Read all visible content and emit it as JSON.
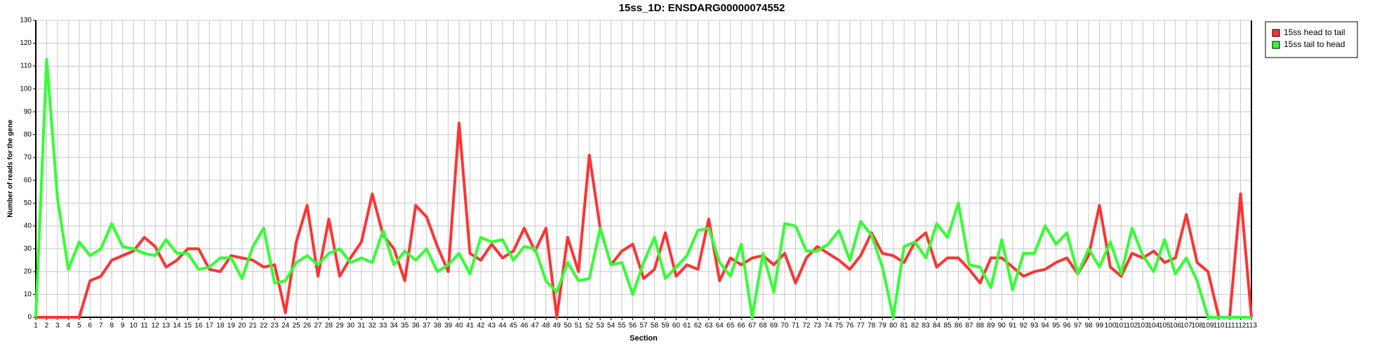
{
  "chart_data": {
    "type": "line",
    "title": "15ss_1D: ENSDARG00000074552",
    "x_label": "Section",
    "y_label": "Number of reads for the gene",
    "x": [
      1,
      2,
      3,
      4,
      5,
      6,
      7,
      8,
      9,
      10,
      11,
      12,
      13,
      14,
      15,
      16,
      17,
      18,
      19,
      20,
      21,
      22,
      23,
      24,
      25,
      26,
      27,
      28,
      29,
      30,
      31,
      32,
      33,
      34,
      35,
      36,
      37,
      38,
      39,
      40,
      41,
      42,
      43,
      44,
      45,
      46,
      47,
      48,
      49,
      50,
      51,
      52,
      53,
      54,
      55,
      56,
      57,
      58,
      59,
      60,
      61,
      62,
      63,
      64,
      65,
      66,
      67,
      68,
      69,
      70,
      71,
      72,
      73,
      74,
      75,
      76,
      77,
      78,
      79,
      80,
      81,
      82,
      83,
      84,
      85,
      86,
      87,
      88,
      89,
      90,
      91,
      92,
      93,
      94,
      95,
      96,
      97,
      98,
      99,
      100,
      101,
      102,
      103,
      104,
      105,
      106,
      107,
      108,
      109,
      110,
      111,
      112,
      113
    ],
    "xlim": [
      1,
      113
    ],
    "xticks": [
      1,
      2,
      3,
      4,
      5,
      6,
      7,
      8,
      9,
      10,
      11,
      12,
      13,
      14,
      15,
      16,
      17,
      18,
      19,
      20,
      21,
      22,
      23,
      24,
      25,
      26,
      27,
      28,
      29,
      30,
      31,
      32,
      33,
      34,
      35,
      36,
      37,
      38,
      39,
      40,
      41,
      42,
      43,
      44,
      45,
      46,
      47,
      48,
      49,
      50,
      51,
      52,
      53,
      54,
      55,
      56,
      57,
      58,
      59,
      60,
      61,
      62,
      63,
      64,
      65,
      66,
      67,
      68,
      69,
      70,
      71,
      72,
      73,
      74,
      75,
      76,
      77,
      78,
      79,
      80,
      81,
      82,
      83,
      84,
      85,
      86,
      87,
      88,
      89,
      90,
      91,
      92,
      93,
      94,
      95,
      96,
      97,
      98,
      99,
      100,
      101,
      102,
      103,
      104,
      105,
      106,
      107,
      108,
      109,
      110,
      111,
      112,
      113
    ],
    "ylim": [
      0,
      130
    ],
    "yticks": [
      0,
      10,
      20,
      30,
      40,
      50,
      60,
      70,
      80,
      90,
      100,
      110,
      120,
      130
    ],
    "grid": true,
    "legend": "right",
    "series": [
      {
        "name": "15ss head to tail",
        "color": "#ff3333",
        "values": [
          0,
          0,
          0,
          0,
          0,
          16,
          18,
          25,
          27,
          29,
          35,
          31,
          22,
          25,
          30,
          30,
          21,
          20,
          27,
          26,
          25,
          22,
          23,
          2,
          33,
          49,
          18,
          43,
          18,
          26,
          33,
          54,
          36,
          30,
          16,
          49,
          44,
          31,
          20,
          85,
          28,
          25,
          32,
          26,
          29,
          39,
          29,
          39,
          0,
          35,
          20,
          71,
          39,
          23,
          29,
          32,
          17,
          21,
          37,
          18,
          23,
          21,
          43,
          16,
          26,
          23,
          26,
          27,
          23,
          28,
          15,
          26,
          31,
          28,
          25,
          21,
          27,
          37,
          28,
          27,
          24,
          33,
          37,
          22,
          26,
          26,
          21,
          15,
          26,
          26,
          22,
          18,
          20,
          21,
          24,
          26,
          19,
          27,
          49,
          22,
          18,
          28,
          26,
          29,
          24,
          26,
          45,
          24,
          20,
          0,
          0,
          54,
          0
        ]
      },
      {
        "name": "15ss tail to head",
        "color": "#33ff33",
        "values": [
          0,
          113,
          52,
          21,
          33,
          27,
          30,
          41,
          31,
          30,
          28,
          27,
          34,
          28,
          28,
          21,
          22,
          26,
          26,
          17,
          31,
          39,
          15,
          16,
          24,
          27,
          23,
          28,
          30,
          24,
          26,
          24,
          38,
          23,
          29,
          25,
          30,
          20,
          23,
          28,
          19,
          35,
          33,
          34,
          25,
          31,
          30,
          16,
          11,
          24,
          16,
          17,
          39,
          23,
          24,
          10,
          24,
          35,
          17,
          22,
          27,
          38,
          39,
          24,
          18,
          32,
          0,
          28,
          11,
          41,
          40,
          29,
          29,
          32,
          38,
          25,
          42,
          36,
          22,
          0,
          31,
          33,
          26,
          41,
          35,
          50,
          23,
          22,
          13,
          34,
          12,
          28,
          28,
          40,
          32,
          37,
          19,
          30,
          22,
          33,
          19,
          39,
          27,
          20,
          34,
          19,
          26,
          16,
          0,
          0,
          0,
          0,
          0
        ]
      }
    ]
  }
}
